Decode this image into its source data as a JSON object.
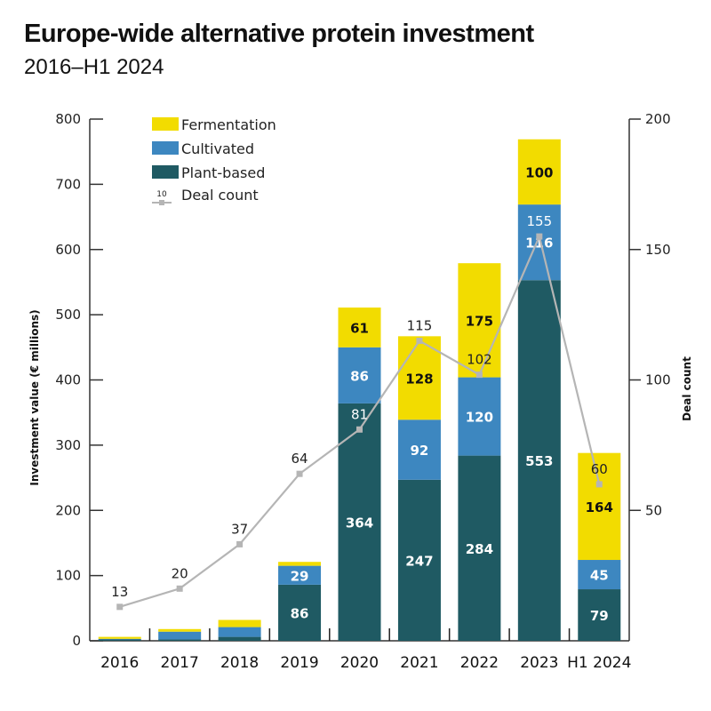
{
  "chart_data": {
    "type": "bar",
    "stacked": true,
    "title": "Europe-wide alternative protein investment",
    "subtitle": "2016–H1 2024",
    "categories": [
      "2016",
      "2017",
      "2018",
      "2019",
      "2020",
      "2021",
      "2022",
      "2023",
      "H1 2024"
    ],
    "series": [
      {
        "name": "Plant-based",
        "color": "#1f5a63",
        "values": [
          2,
          2,
          6,
          86,
          364,
          247,
          284,
          553,
          79
        ],
        "labels": [
          "",
          "",
          "",
          "86",
          "364",
          "247",
          "284",
          "553",
          "79"
        ],
        "label_color": "#ffffff"
      },
      {
        "name": "Cultivated",
        "color": "#3d87c0",
        "values": [
          1,
          12,
          15,
          29,
          86,
          92,
          120,
          116,
          45
        ],
        "labels": [
          "",
          "",
          "",
          "29",
          "86",
          "92",
          "120",
          "116",
          "45"
        ],
        "label_color": "#ffffff"
      },
      {
        "name": "Fermentation",
        "color": "#f2dc00",
        "values": [
          3,
          4,
          11,
          6,
          61,
          128,
          175,
          100,
          164
        ],
        "labels": [
          "",
          "",
          "",
          "",
          "61",
          "128",
          "175",
          "100",
          "164"
        ],
        "label_color": "#111111"
      }
    ],
    "line_series": {
      "name": "Deal count",
      "axis": "right",
      "color": "#b5b5b5",
      "values": [
        13,
        20,
        37,
        64,
        81,
        115,
        102,
        155,
        60
      ]
    },
    "ylabel": "Investment value (€ millions)",
    "ylim": [
      0,
      800
    ],
    "yticks": [
      0,
      100,
      200,
      300,
      400,
      500,
      600,
      700,
      800
    ],
    "y2label": "Deal count",
    "y2lim": [
      0,
      200
    ],
    "y2ticks": [
      50,
      100,
      150,
      200
    ],
    "legend": {
      "position": "top-left",
      "entries": [
        "Fermentation",
        "Cultivated",
        "Plant-based",
        "Deal count"
      ],
      "deal_sample": "10"
    },
    "grid": false
  }
}
